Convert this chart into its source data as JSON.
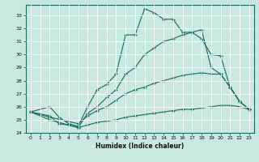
{
  "xlabel": "Humidex (Indice chaleur)",
  "bg_color": "#c8e8e0",
  "line_color": "#1a6b5a",
  "grid_color": "#ffffff",
  "xlim": [
    -0.5,
    23.5
  ],
  "ylim": [
    24,
    33.8
  ],
  "yticks": [
    24,
    25,
    26,
    27,
    28,
    29,
    30,
    31,
    32,
    33
  ],
  "xticks": [
    0,
    1,
    2,
    3,
    4,
    5,
    6,
    7,
    8,
    9,
    10,
    11,
    12,
    13,
    14,
    15,
    16,
    17,
    18,
    19,
    20,
    21,
    22,
    23
  ],
  "series": [
    {
      "x": [
        0,
        2,
        3,
        4,
        5,
        6,
        7,
        8,
        9,
        10,
        11,
        12,
        13,
        14,
        15,
        16,
        17,
        18,
        19,
        20,
        21,
        22,
        23
      ],
      "y": [
        25.6,
        26.0,
        25.2,
        24.7,
        24.5,
        26.0,
        27.3,
        27.7,
        28.5,
        31.5,
        31.5,
        33.5,
        33.2,
        32.7,
        32.7,
        31.7,
        31.7,
        31.2,
        30.0,
        29.9,
        27.5,
        26.4,
        25.8
      ]
    },
    {
      "x": [
        0,
        2,
        3,
        4,
        5,
        6,
        7,
        8,
        9,
        10,
        11,
        12,
        13,
        14,
        15,
        16,
        17,
        18,
        19,
        20,
        21,
        22,
        23
      ],
      "y": [
        25.6,
        25.3,
        24.7,
        24.6,
        24.4,
        25.5,
        26.0,
        26.7,
        27.3,
        28.5,
        29.0,
        30.0,
        30.5,
        31.0,
        31.2,
        31.5,
        31.7,
        31.9,
        29.0,
        28.5,
        27.5,
        26.4,
        25.8
      ]
    },
    {
      "x": [
        0,
        2,
        5,
        6,
        7,
        8,
        9,
        10,
        11,
        12,
        13,
        14,
        15,
        16,
        17,
        18,
        19,
        20,
        21,
        22,
        23
      ],
      "y": [
        25.6,
        25.2,
        24.7,
        25.3,
        25.7,
        26.0,
        26.5,
        27.0,
        27.3,
        27.5,
        27.8,
        28.0,
        28.2,
        28.4,
        28.5,
        28.6,
        28.5,
        28.5,
        27.5,
        26.4,
        25.8
      ]
    },
    {
      "x": [
        0,
        2,
        5,
        6,
        7,
        8,
        9,
        10,
        11,
        12,
        13,
        14,
        15,
        16,
        17,
        18,
        19,
        20,
        21,
        22,
        23
      ],
      "y": [
        25.6,
        25.0,
        24.4,
        24.6,
        24.8,
        24.9,
        25.0,
        25.2,
        25.3,
        25.4,
        25.5,
        25.6,
        25.7,
        25.8,
        25.8,
        25.9,
        26.0,
        26.1,
        26.1,
        26.0,
        25.8
      ]
    }
  ]
}
